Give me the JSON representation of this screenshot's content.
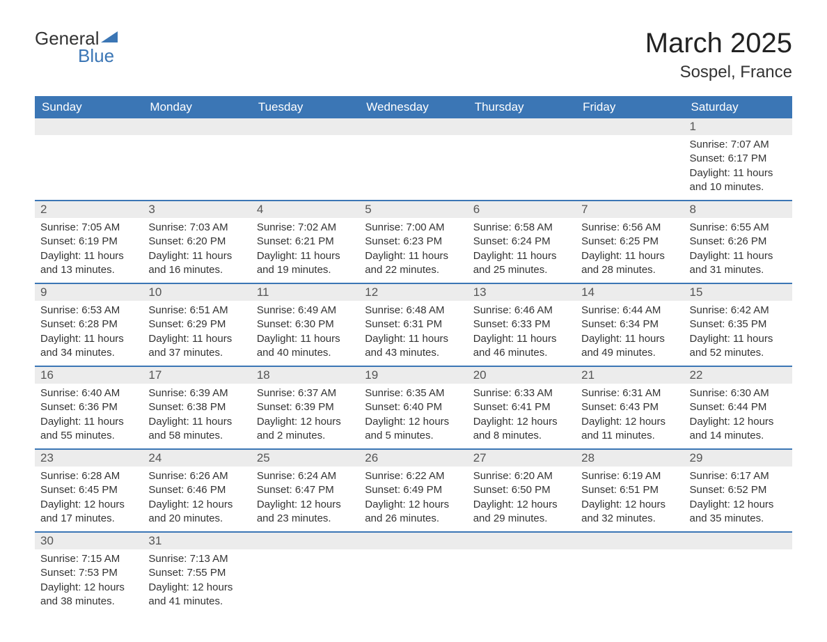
{
  "logo": {
    "text_general": "General",
    "text_blue": "Blue",
    "triangle_color": "#3b76b5"
  },
  "title": "March 2025",
  "location": "Sospel, France",
  "colors": {
    "header_bg": "#3b76b5",
    "header_text": "#ffffff",
    "day_number_bg": "#ececec",
    "text": "#333333",
    "row_border": "#3b76b5"
  },
  "weekdays": [
    "Sunday",
    "Monday",
    "Tuesday",
    "Wednesday",
    "Thursday",
    "Friday",
    "Saturday"
  ],
  "weeks": [
    [
      null,
      null,
      null,
      null,
      null,
      null,
      {
        "d": "1",
        "sr": "7:07 AM",
        "ss": "6:17 PM",
        "dl": "11 hours and 10 minutes."
      }
    ],
    [
      {
        "d": "2",
        "sr": "7:05 AM",
        "ss": "6:19 PM",
        "dl": "11 hours and 13 minutes."
      },
      {
        "d": "3",
        "sr": "7:03 AM",
        "ss": "6:20 PM",
        "dl": "11 hours and 16 minutes."
      },
      {
        "d": "4",
        "sr": "7:02 AM",
        "ss": "6:21 PM",
        "dl": "11 hours and 19 minutes."
      },
      {
        "d": "5",
        "sr": "7:00 AM",
        "ss": "6:23 PM",
        "dl": "11 hours and 22 minutes."
      },
      {
        "d": "6",
        "sr": "6:58 AM",
        "ss": "6:24 PM",
        "dl": "11 hours and 25 minutes."
      },
      {
        "d": "7",
        "sr": "6:56 AM",
        "ss": "6:25 PM",
        "dl": "11 hours and 28 minutes."
      },
      {
        "d": "8",
        "sr": "6:55 AM",
        "ss": "6:26 PM",
        "dl": "11 hours and 31 minutes."
      }
    ],
    [
      {
        "d": "9",
        "sr": "6:53 AM",
        "ss": "6:28 PM",
        "dl": "11 hours and 34 minutes."
      },
      {
        "d": "10",
        "sr": "6:51 AM",
        "ss": "6:29 PM",
        "dl": "11 hours and 37 minutes."
      },
      {
        "d": "11",
        "sr": "6:49 AM",
        "ss": "6:30 PM",
        "dl": "11 hours and 40 minutes."
      },
      {
        "d": "12",
        "sr": "6:48 AM",
        "ss": "6:31 PM",
        "dl": "11 hours and 43 minutes."
      },
      {
        "d": "13",
        "sr": "6:46 AM",
        "ss": "6:33 PM",
        "dl": "11 hours and 46 minutes."
      },
      {
        "d": "14",
        "sr": "6:44 AM",
        "ss": "6:34 PM",
        "dl": "11 hours and 49 minutes."
      },
      {
        "d": "15",
        "sr": "6:42 AM",
        "ss": "6:35 PM",
        "dl": "11 hours and 52 minutes."
      }
    ],
    [
      {
        "d": "16",
        "sr": "6:40 AM",
        "ss": "6:36 PM",
        "dl": "11 hours and 55 minutes."
      },
      {
        "d": "17",
        "sr": "6:39 AM",
        "ss": "6:38 PM",
        "dl": "11 hours and 58 minutes."
      },
      {
        "d": "18",
        "sr": "6:37 AM",
        "ss": "6:39 PM",
        "dl": "12 hours and 2 minutes."
      },
      {
        "d": "19",
        "sr": "6:35 AM",
        "ss": "6:40 PM",
        "dl": "12 hours and 5 minutes."
      },
      {
        "d": "20",
        "sr": "6:33 AM",
        "ss": "6:41 PM",
        "dl": "12 hours and 8 minutes."
      },
      {
        "d": "21",
        "sr": "6:31 AM",
        "ss": "6:43 PM",
        "dl": "12 hours and 11 minutes."
      },
      {
        "d": "22",
        "sr": "6:30 AM",
        "ss": "6:44 PM",
        "dl": "12 hours and 14 minutes."
      }
    ],
    [
      {
        "d": "23",
        "sr": "6:28 AM",
        "ss": "6:45 PM",
        "dl": "12 hours and 17 minutes."
      },
      {
        "d": "24",
        "sr": "6:26 AM",
        "ss": "6:46 PM",
        "dl": "12 hours and 20 minutes."
      },
      {
        "d": "25",
        "sr": "6:24 AM",
        "ss": "6:47 PM",
        "dl": "12 hours and 23 minutes."
      },
      {
        "d": "26",
        "sr": "6:22 AM",
        "ss": "6:49 PM",
        "dl": "12 hours and 26 minutes."
      },
      {
        "d": "27",
        "sr": "6:20 AM",
        "ss": "6:50 PM",
        "dl": "12 hours and 29 minutes."
      },
      {
        "d": "28",
        "sr": "6:19 AM",
        "ss": "6:51 PM",
        "dl": "12 hours and 32 minutes."
      },
      {
        "d": "29",
        "sr": "6:17 AM",
        "ss": "6:52 PM",
        "dl": "12 hours and 35 minutes."
      }
    ],
    [
      {
        "d": "30",
        "sr": "7:15 AM",
        "ss": "7:53 PM",
        "dl": "12 hours and 38 minutes."
      },
      {
        "d": "31",
        "sr": "7:13 AM",
        "ss": "7:55 PM",
        "dl": "12 hours and 41 minutes."
      },
      null,
      null,
      null,
      null,
      null
    ]
  ],
  "labels": {
    "sunrise": "Sunrise: ",
    "sunset": "Sunset: ",
    "daylight": "Daylight: "
  }
}
